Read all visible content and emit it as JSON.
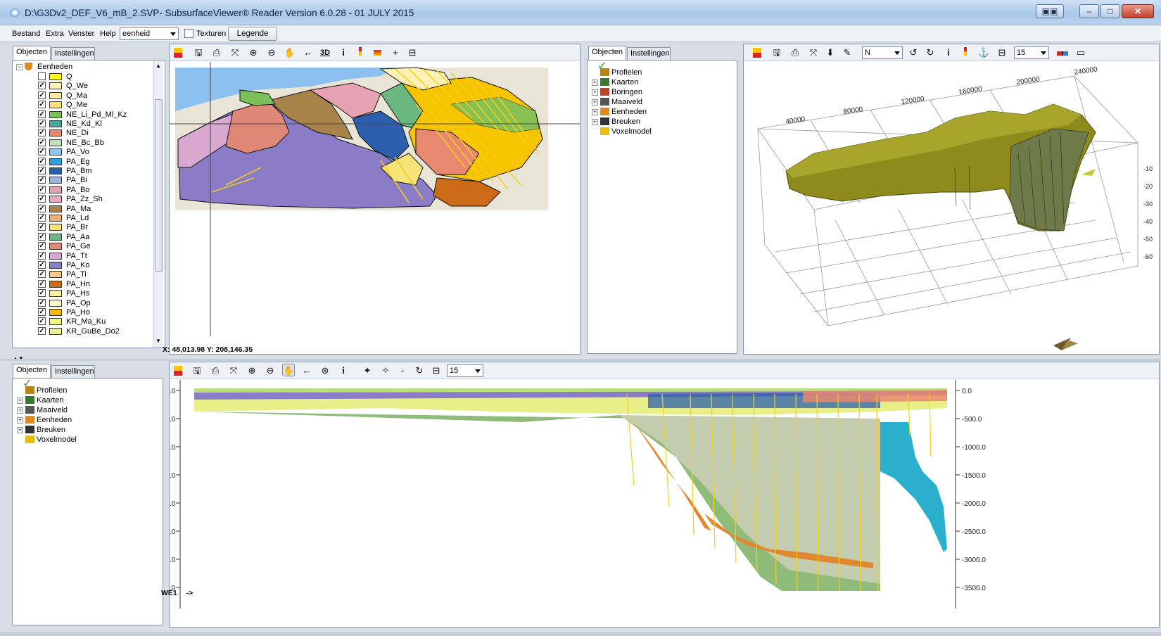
{
  "window": {
    "title": "D:\\G3Dv2_DEF_V6_mB_2.SVP- SubsurfaceViewer® Reader Version 6.0.28 - 01 JULY 2015"
  },
  "menu": {
    "items": [
      "Bestand",
      "Extra",
      "Venster",
      "Help"
    ],
    "dropdown_value": "eenheid",
    "texturen_label": "Texturen",
    "legende_label": "Legende"
  },
  "tabs": {
    "objecten": "Objecten",
    "instellingen": "Instellingen"
  },
  "units_panel": {
    "root_label": "Eenheden",
    "units": [
      {
        "label": "Q",
        "color": "#ffff00",
        "checked": false
      },
      {
        "label": "Q_We",
        "color": "#fff2b8",
        "checked": true
      },
      {
        "label": "Q_Ma",
        "color": "#ffe8a6",
        "checked": true
      },
      {
        "label": "Q_Me",
        "color": "#ffe07a",
        "checked": true
      },
      {
        "label": "NE_Li_Pd_Ml_Kz",
        "color": "#7cc05a",
        "checked": true
      },
      {
        "label": "NE_Kd_Kl",
        "color": "#48a89c",
        "checked": true
      },
      {
        "label": "NE_Di",
        "color": "#e98870",
        "checked": true
      },
      {
        "label": "NE_Bc_Bb",
        "color": "#bfe0b8",
        "checked": true
      },
      {
        "label": "PA_Vo",
        "color": "#8dc8f0",
        "checked": true
      },
      {
        "label": "PA_Eg",
        "color": "#2ca0e0",
        "checked": true
      },
      {
        "label": "PA_Bm",
        "color": "#2b5fae",
        "checked": true
      },
      {
        "label": "PA_Bi",
        "color": "#9bb6de",
        "checked": true
      },
      {
        "label": "PA_Bo",
        "color": "#e6a2b2",
        "checked": true
      },
      {
        "label": "PA_Zz_Sh",
        "color": "#e8a8c0",
        "checked": true
      },
      {
        "label": "PA_Ma",
        "color": "#a8844a",
        "checked": true
      },
      {
        "label": "PA_Ld",
        "color": "#f0b070",
        "checked": true
      },
      {
        "label": "PA_Br",
        "color": "#f6e478",
        "checked": true
      },
      {
        "label": "PA_Aa",
        "color": "#6ab880",
        "checked": true
      },
      {
        "label": "PA_Ge",
        "color": "#e08878",
        "checked": true
      },
      {
        "label": "PA_Tt",
        "color": "#d9a8d0",
        "checked": true
      },
      {
        "label": "PA_Ko",
        "color": "#8a7cc6",
        "checked": true
      },
      {
        "label": "PA_Ti",
        "color": "#f8c88c",
        "checked": true
      },
      {
        "label": "PA_Hn",
        "color": "#cc6a18",
        "checked": true
      },
      {
        "label": "PA_Hs",
        "color": "#fff0a0",
        "checked": true
      },
      {
        "label": "PA_Op",
        "color": "#fff8c8",
        "checked": true
      },
      {
        "label": "PA_Ho",
        "color": "#f8b800",
        "checked": true
      },
      {
        "label": "KR_Ma_Ku",
        "color": "#f0f880",
        "checked": true
      },
      {
        "label": "KR_GuBe_Do2",
        "color": "#e8f098",
        "checked": true
      }
    ]
  },
  "map_view": {
    "coordinates": "X: 48,013.98 Y: 208,146.35",
    "tool_3d": "3D",
    "tool_info": "i"
  },
  "objects_panel_mid": {
    "items": [
      "Profielen",
      "Kaarten",
      "Boringen",
      "Maaiveld",
      "Eenheden",
      "Breuken",
      "Voxelmodel"
    ]
  },
  "view3d": {
    "direction_value": "N",
    "zoom_value": "15",
    "tool_info": "i",
    "axis_top_labels": [
      "40000",
      "80000",
      "120000",
      "160000",
      "200000",
      "240000"
    ],
    "axis_right_labels": [
      "-10",
      "-20",
      "-30",
      "-40",
      "-50",
      "-60"
    ]
  },
  "objects_panel_bottom": {
    "items": [
      "Profielen",
      "Kaarten",
      "Maaiveld",
      "Eenheden",
      "Breuken",
      "Voxelmodel"
    ]
  },
  "profile_view": {
    "zoom_value": "15",
    "tool_info": "i",
    "tool_dash": "-",
    "profile_name": "WE1",
    "profile_arrow": "->",
    "depth_labels": [
      "0.0",
      "-500.0",
      "-1000.0",
      "-1500.0",
      "-2000.0",
      "-2500.0",
      "-3000.0",
      "-3500.0"
    ],
    "left_tick_labels": [
      ".0",
      ".0",
      ".0",
      ".0",
      ".0",
      ".0",
      ".0",
      ".0"
    ]
  },
  "colors": {
    "accent": "#2b5fae",
    "fault": "#f2d21a"
  }
}
